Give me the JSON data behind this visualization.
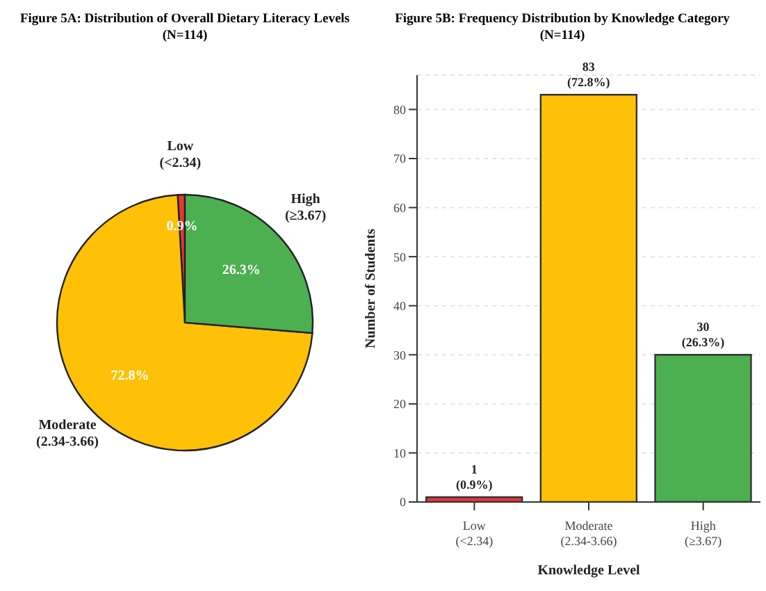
{
  "chart_data": [
    {
      "type": "pie",
      "title": "Figure 5A: Distribution of Overall Dietary Literacy Levels",
      "subtitle": "(N=114)",
      "categories": [
        "Low\n(<2.34)",
        "Moderate\n(2.34-3.66)",
        "High\n(≥3.67)"
      ],
      "values": [
        0.9,
        72.8,
        26.3
      ],
      "colors": [
        "#e53935",
        "#ffc107",
        "#4caf50"
      ],
      "value_labels": [
        "0.9%",
        "72.8%",
        "26.3%"
      ],
      "legend": false
    },
    {
      "type": "bar",
      "title": "Figure 5B: Frequency Distribution by Knowledge Category",
      "subtitle": "(N=114)",
      "xlabel": "Knowledge Level",
      "ylabel": "Number of Students",
      "categories": [
        "Low\n(<2.34)",
        "Moderate\n(2.34-3.66)",
        "High\n(≥3.67)"
      ],
      "values": [
        1,
        83,
        30
      ],
      "colors": [
        "#e53935",
        "#ffc107",
        "#4caf50"
      ],
      "value_labels": [
        "1\n(0.9%)",
        "83\n(72.8%)",
        "30\n(26.3%)"
      ],
      "ylim": [
        0,
        87
      ],
      "yticks": [
        0,
        10,
        20,
        30,
        40,
        50,
        60,
        70,
        80
      ],
      "grid": "y",
      "legend": false
    }
  ]
}
